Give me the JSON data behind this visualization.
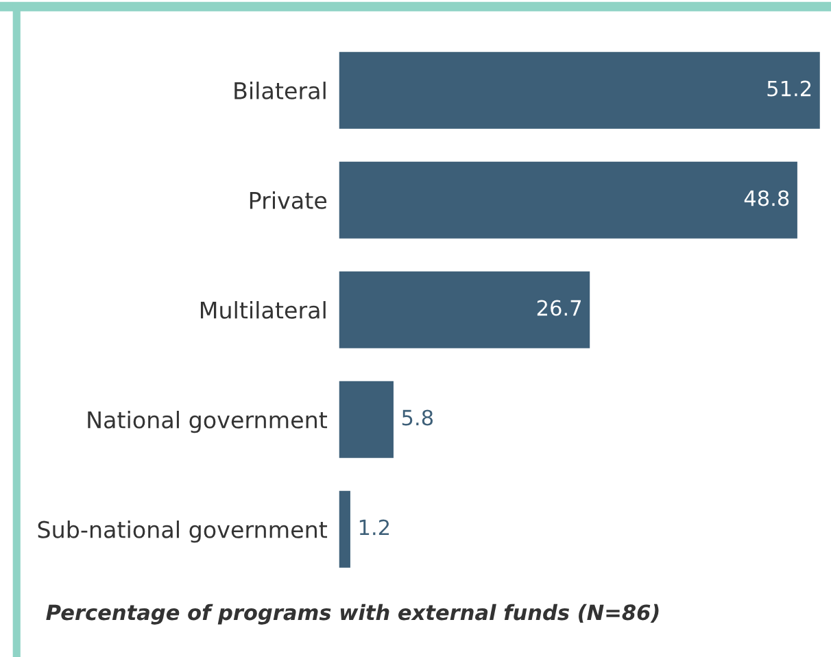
{
  "chart_data": {
    "type": "bar",
    "orientation": "horizontal",
    "categories": [
      "Bilateral",
      "Private",
      "Multilateral",
      "National government",
      "Sub-national government"
    ],
    "values": [
      51.2,
      48.8,
      26.7,
      5.8,
      1.2
    ],
    "color": "#3d5f78",
    "xlim": [
      0,
      51.5
    ],
    "data_labels": true,
    "grid": false,
    "legend": false,
    "annotations": [
      "Percentage of programs with external funds (N=86)"
    ]
  }
}
